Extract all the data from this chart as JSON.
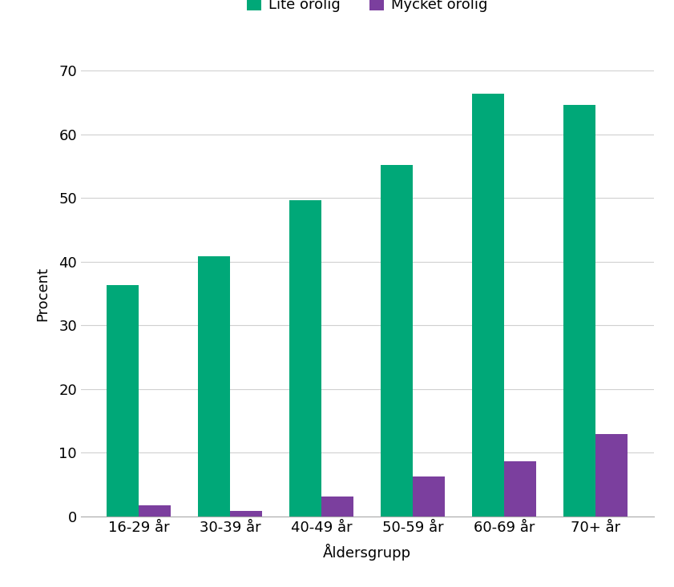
{
  "categories": [
    "16-29 år",
    "30-39 år",
    "40-49 år",
    "50-59 år",
    "60-69 år",
    "70+ år"
  ],
  "lite_orolig": [
    36.3,
    40.8,
    49.7,
    55.2,
    66.3,
    64.6
  ],
  "mycket_orolig": [
    1.8,
    0.9,
    3.2,
    6.3,
    8.7,
    13.0
  ],
  "color_lite": "#00a878",
  "color_mycket": "#7b3f9e",
  "ylabel": "Procent",
  "xlabel": "Åldersgrupp",
  "legend_lite": "Lite orolig",
  "legend_mycket": "Mycket orolig",
  "ylim": [
    0,
    70
  ],
  "yticks": [
    0,
    10,
    20,
    30,
    40,
    50,
    60,
    70
  ],
  "background_color": "#ffffff",
  "bar_width": 0.35,
  "grid_color": "#d0d0d0"
}
